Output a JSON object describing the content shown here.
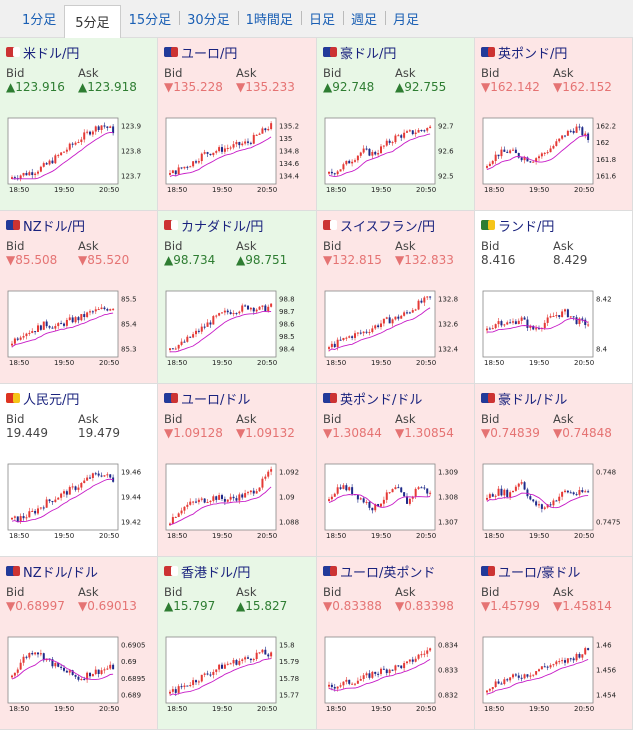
{
  "tabs": [
    "1分足",
    "5分足",
    "15分足",
    "30分足",
    "1時間足",
    "日足",
    "週足",
    "月足"
  ],
  "active_tab": 1,
  "times": [
    "18:50",
    "19:50",
    "20:50"
  ],
  "colors": {
    "up": "#2e7d32",
    "down": "#e57373",
    "up_bg": "#e8f7e6",
    "down_bg": "#fde6e6",
    "ma": "#c71bc7",
    "bull": "#e53935",
    "bear": "#1e2a8a"
  },
  "pairs": [
    {
      "name": "米ドル/円",
      "dir": "up",
      "bid": "▲123.916",
      "ask": "▲123.918",
      "flag": [
        "#c33",
        "#fff"
      ],
      "yticks": [
        "123.9",
        "123.8",
        "123.7"
      ],
      "shape": [
        0.05,
        0.1,
        0.15,
        0.25,
        0.4,
        0.55,
        0.7,
        0.85,
        0.95,
        0.85
      ]
    },
    {
      "name": "ユーロ/円",
      "dir": "down",
      "bid": "▼135.228",
      "ask": "▼135.233",
      "flag": [
        "#223a9a",
        "#c33"
      ],
      "yticks": [
        "135.2",
        "135",
        "134.8",
        "134.6",
        "134.4"
      ],
      "shape": [
        0.1,
        0.2,
        0.3,
        0.45,
        0.5,
        0.55,
        0.6,
        0.65,
        0.8,
        0.95
      ]
    },
    {
      "name": "豪ドル/円",
      "dir": "up",
      "bid": "▲92.748",
      "ask": "▲92.755",
      "flag": [
        "#223a9a",
        "#c33"
      ],
      "yticks": [
        "92.7",
        "92.6",
        "92.5"
      ],
      "shape": [
        0.1,
        0.2,
        0.35,
        0.5,
        0.45,
        0.6,
        0.75,
        0.8,
        0.85,
        0.9
      ]
    },
    {
      "name": "英ポンド/円",
      "dir": "down",
      "bid": "▼162.142",
      "ask": "▼162.152",
      "flag": [
        "#223a9a",
        "#c33"
      ],
      "yticks": [
        "162.2",
        "162",
        "161.8",
        "161.6"
      ],
      "shape": [
        0.3,
        0.45,
        0.5,
        0.4,
        0.35,
        0.45,
        0.6,
        0.8,
        0.9,
        0.7
      ]
    },
    {
      "name": "NZドル/円",
      "dir": "down",
      "bid": "▼85.508",
      "ask": "▼85.520",
      "flag": [
        "#223a9a",
        "#c33"
      ],
      "yticks": [
        "85.5",
        "85.4",
        "85.3"
      ],
      "shape": [
        0.2,
        0.35,
        0.4,
        0.5,
        0.45,
        0.55,
        0.6,
        0.7,
        0.75,
        0.8
      ]
    },
    {
      "name": "カナダドル/円",
      "dir": "up",
      "bid": "▲98.734",
      "ask": "▲98.751",
      "flag": [
        "#c33",
        "#fff"
      ],
      "yticks": [
        "98.8",
        "98.7",
        "98.6",
        "98.5",
        "98.4"
      ],
      "shape": [
        0.1,
        0.15,
        0.3,
        0.45,
        0.6,
        0.7,
        0.75,
        0.8,
        0.75,
        0.8
      ]
    },
    {
      "name": "スイスフラン/円",
      "dir": "down",
      "bid": "▼132.815",
      "ask": "▼132.833",
      "flag": [
        "#c33",
        "#fff"
      ],
      "yticks": [
        "132.8",
        "132.6",
        "132.4"
      ],
      "shape": [
        0.1,
        0.2,
        0.3,
        0.35,
        0.45,
        0.55,
        0.6,
        0.7,
        0.85,
        0.95
      ]
    },
    {
      "name": "ランド/円",
      "dir": "flat",
      "bid": "8.416",
      "ask": "8.429",
      "flag": [
        "#2e7d32",
        "#f5c518"
      ],
      "yticks": [
        "8.42",
        "8.4"
      ],
      "shape": [
        0.4,
        0.55,
        0.5,
        0.6,
        0.4,
        0.5,
        0.65,
        0.7,
        0.55,
        0.5
      ]
    },
    {
      "name": "人民元/円",
      "dir": "flat",
      "bid": "19.449",
      "ask": "19.479",
      "flag": [
        "#d32",
        "#f5c518"
      ],
      "yticks": [
        "19.46",
        "19.44",
        "19.42"
      ],
      "shape": [
        0.1,
        0.15,
        0.25,
        0.4,
        0.5,
        0.6,
        0.7,
        0.85,
        0.9,
        0.8
      ]
    },
    {
      "name": "ユーロ/ドル",
      "dir": "down",
      "bid": "▼1.09128",
      "ask": "▼1.09132",
      "flag": [
        "#223a9a",
        "#c33"
      ],
      "yticks": [
        "1.092",
        "1.09",
        "1.088"
      ],
      "shape": [
        0.1,
        0.3,
        0.4,
        0.45,
        0.5,
        0.45,
        0.5,
        0.55,
        0.7,
        0.95
      ]
    },
    {
      "name": "英ポンド/ドル",
      "dir": "down",
      "bid": "▼1.30844",
      "ask": "▼1.30854",
      "flag": [
        "#223a9a",
        "#c33"
      ],
      "yticks": [
        "1.309",
        "1.308",
        "1.307"
      ],
      "shape": [
        0.5,
        0.7,
        0.6,
        0.45,
        0.3,
        0.5,
        0.65,
        0.4,
        0.7,
        0.55
      ]
    },
    {
      "name": "豪ドル/ドル",
      "dir": "down",
      "bid": "▼0.74839",
      "ask": "▼0.74848",
      "flag": [
        "#223a9a",
        "#c33"
      ],
      "yticks": [
        "0.748",
        "0.7475"
      ],
      "shape": [
        0.5,
        0.6,
        0.55,
        0.8,
        0.4,
        0.3,
        0.45,
        0.6,
        0.55,
        0.6
      ]
    },
    {
      "name": "NZドル/ドル",
      "dir": "down",
      "bid": "▼0.68997",
      "ask": "▼0.69013",
      "flag": [
        "#223a9a",
        "#c33"
      ],
      "yticks": [
        "0.6905",
        "0.69",
        "0.6895",
        "0.689"
      ],
      "shape": [
        0.4,
        0.7,
        0.85,
        0.7,
        0.55,
        0.45,
        0.35,
        0.45,
        0.5,
        0.55
      ]
    },
    {
      "name": "香港ドル/円",
      "dir": "up",
      "bid": "▲15.797",
      "ask": "▲15.827",
      "flag": [
        "#c33",
        "#fff"
      ],
      "yticks": [
        "15.8",
        "15.79",
        "15.78",
        "15.77"
      ],
      "shape": [
        0.1,
        0.2,
        0.3,
        0.4,
        0.5,
        0.6,
        0.65,
        0.7,
        0.8,
        0.75
      ]
    },
    {
      "name": "ユーロ/英ポンド",
      "dir": "down",
      "bid": "▼0.83388",
      "ask": "▼0.83398",
      "flag": [
        "#223a9a",
        "#c33"
      ],
      "yticks": [
        "0.834",
        "0.833",
        "0.832"
      ],
      "shape": [
        0.2,
        0.25,
        0.3,
        0.35,
        0.45,
        0.5,
        0.55,
        0.6,
        0.75,
        0.85
      ]
    },
    {
      "name": "ユーロ/豪ドル",
      "dir": "down",
      "bid": "▼1.45799",
      "ask": "▼1.45814",
      "flag": [
        "#223a9a",
        "#c33"
      ],
      "yticks": [
        "1.46",
        "1.456",
        "1.454"
      ],
      "shape": [
        0.2,
        0.3,
        0.35,
        0.4,
        0.45,
        0.55,
        0.6,
        0.65,
        0.75,
        0.85
      ]
    }
  ],
  "labels": {
    "bid": "Bid",
    "ask": "Ask"
  }
}
